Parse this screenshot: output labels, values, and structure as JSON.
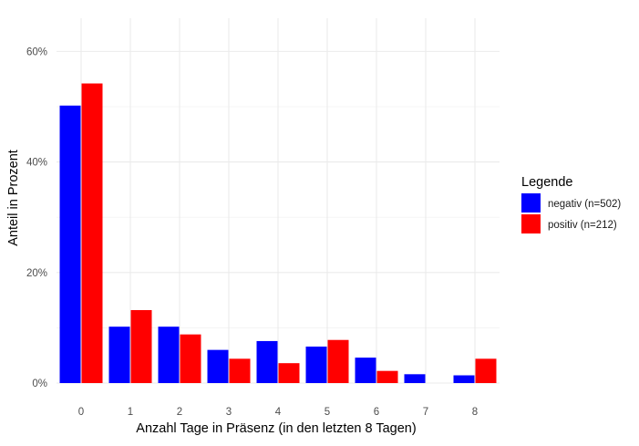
{
  "chart_data": {
    "type": "bar",
    "title": "",
    "xlabel": "Anzahl Tage in Präsenz (in den letzten 8 Tagen)",
    "ylabel": "Anteil in Prozent",
    "categories": [
      "0",
      "1",
      "2",
      "3",
      "4",
      "5",
      "6",
      "7",
      "8"
    ],
    "series": [
      {
        "name": "negativ (n=502)",
        "color": "#0000ff",
        "values": [
          50.2,
          10.2,
          10.2,
          6.0,
          7.6,
          6.6,
          4.6,
          1.6,
          1.4
        ]
      },
      {
        "name": "positiv (n=212)",
        "color": "#ff0000",
        "values": [
          54.2,
          13.2,
          8.8,
          4.4,
          3.6,
          7.8,
          2.2,
          0.0,
          4.4
        ]
      }
    ],
    "ylim": [
      0,
      66
    ],
    "yticks": [
      0,
      20,
      40,
      60
    ],
    "ytick_labels": [
      "0%",
      "20%",
      "40%",
      "60%"
    ],
    "grid": true,
    "legend": {
      "title": "Legende",
      "position": "right"
    }
  }
}
